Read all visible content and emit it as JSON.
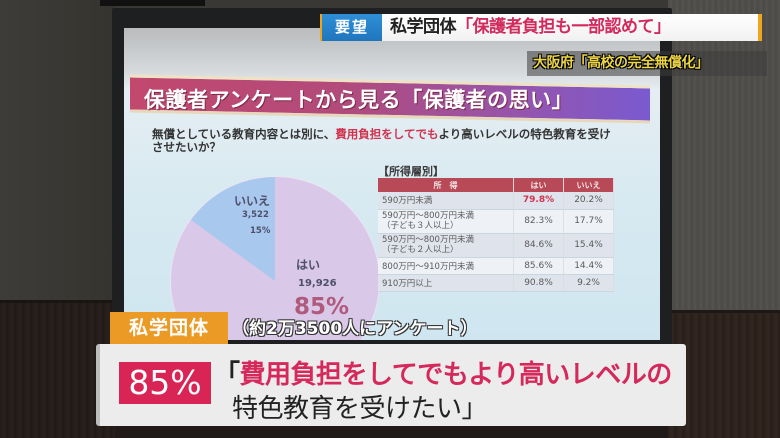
{
  "ticker": {
    "badge": "要望",
    "speaker": "私学団体",
    "quote": "「保護者負担も一部認めて」",
    "subline": "大阪府「高校の完全無償化」"
  },
  "slide": {
    "title": "保護者アンケートから見る「保護者の思い」",
    "question_pre": "無償としている教育内容とは別に、",
    "question_highlight": "費用負担をしてでも",
    "question_post": "より高いレベルの特色教育を受けさせたいか？",
    "pie": {
      "no_label": "いいえ",
      "no_count": "3,522",
      "no_pct": "15%",
      "yes_label": "はい",
      "yes_count": "19,926",
      "yes_pct": "85%"
    },
    "table": {
      "caption": "【所得層別】",
      "headers": [
        "所　得",
        "はい",
        "いいえ"
      ],
      "rows": [
        {
          "income": "590万円未満",
          "yes": "79.8%",
          "no": "20.2%"
        },
        {
          "income": "590万円〜800万円未満（子ども３人以上）",
          "income_l1": "590万円〜800万円未満",
          "income_l2": "（子ども３人以上）",
          "yes": "82.3%",
          "no": "17.7%"
        },
        {
          "income": "590万円〜800万円未満（子ども２人以上）",
          "income_l1": "590万円〜800万円未満",
          "income_l2": "（子ども２人以上）",
          "yes": "84.6%",
          "no": "15.4%"
        },
        {
          "income": "800万円〜910万円未満",
          "yes": "85.6%",
          "no": "14.4%"
        },
        {
          "income": "910万円以上",
          "yes": "90.8%",
          "no": "9.2%"
        }
      ]
    }
  },
  "lower_third": {
    "org": "私学団体",
    "note": "（約2万3500人にアンケート）",
    "percent": "85%",
    "line1_open": "「",
    "line1": "費用負担をしてでもより高いレベルの",
    "line2": "特色教育を受けたい」"
  },
  "colors": {
    "ticker_badge": "#1f76bd",
    "ticker_quote": "#d32a5e",
    "subline": "#ecd646",
    "org_tag": "#ec9a26",
    "percent_badge": "#d92556",
    "caption_highlight": "#d5295c"
  }
}
